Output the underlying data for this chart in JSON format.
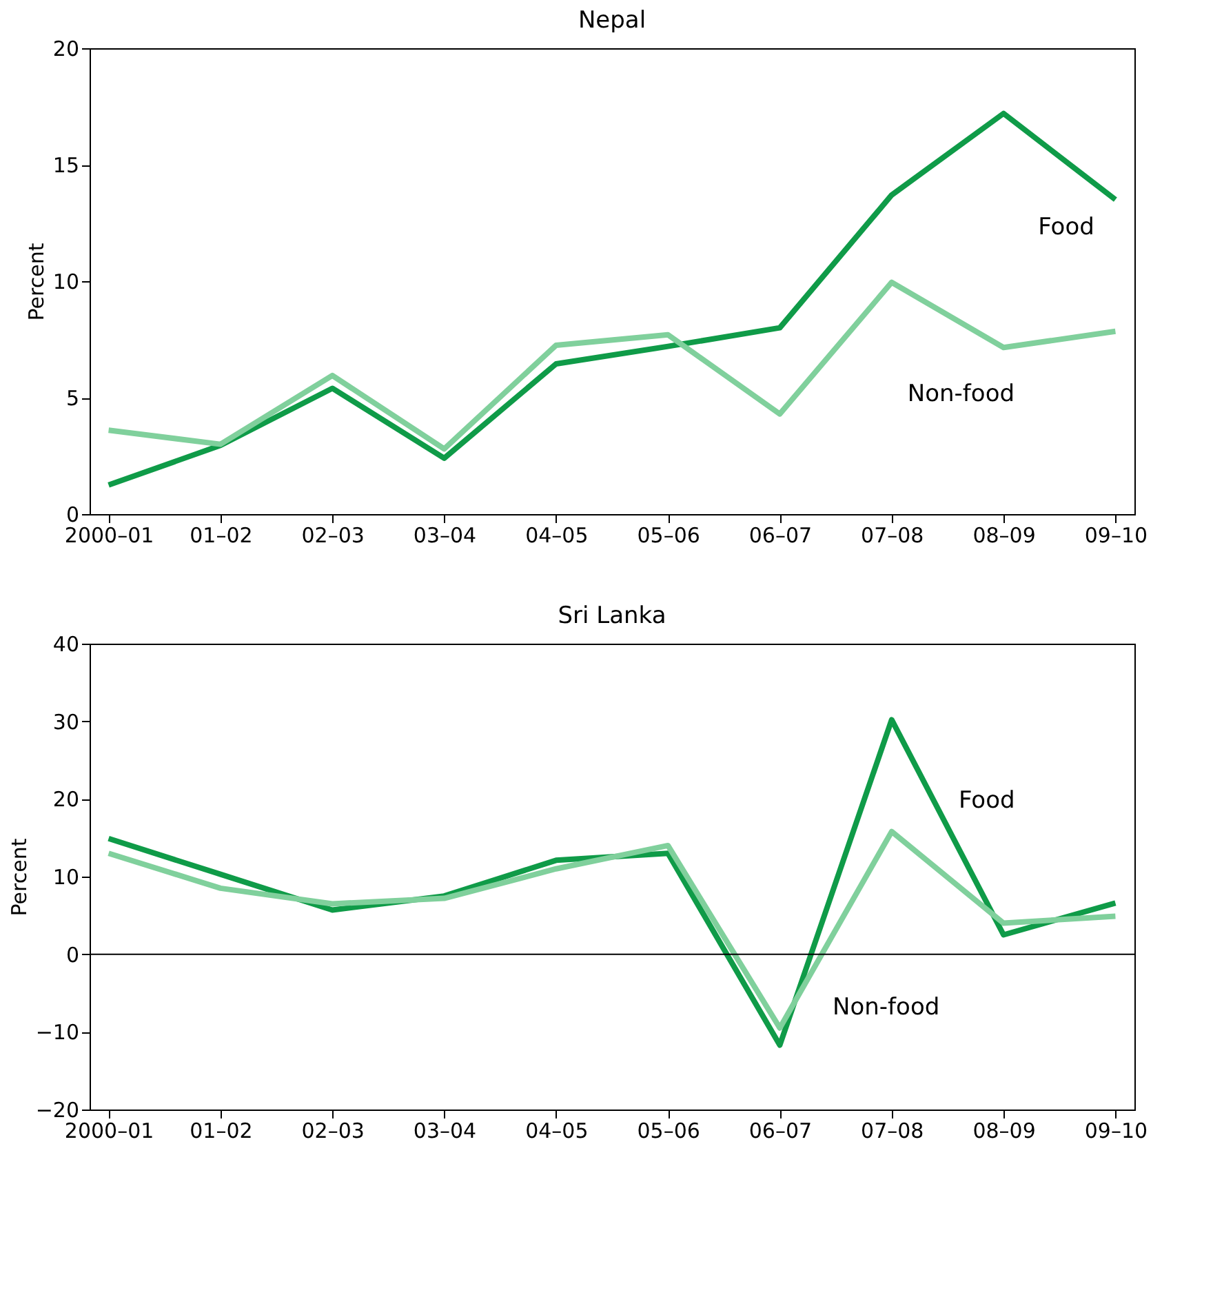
{
  "chart_data": [
    {
      "type": "line",
      "title": "Nepal",
      "ylabel": "Percent",
      "categories": [
        "2000–01",
        "01–02",
        "02–03",
        "03–04",
        "04–05",
        "05–06",
        "06–07",
        "07–08",
        "08–09",
        "09–10"
      ],
      "ylim": [
        0,
        20
      ],
      "yticks": [
        0,
        5,
        10,
        15,
        20
      ],
      "grid": false,
      "marker": "none",
      "line_style": "solid",
      "series": [
        {
          "name": "Food",
          "color": "#0f9b48",
          "values": [
            1.25,
            2.95,
            5.4,
            2.4,
            6.45,
            7.2,
            8.0,
            13.7,
            17.2,
            13.5
          ]
        },
        {
          "name": "Non-food",
          "color": "#80d09c",
          "values": [
            3.6,
            3.0,
            5.95,
            2.8,
            7.25,
            7.7,
            4.3,
            9.95,
            7.15,
            7.85
          ]
        }
      ]
    },
    {
      "type": "line",
      "title": "Sri Lanka",
      "ylabel": "Percent",
      "categories": [
        "2000–01",
        "01–02",
        "02–03",
        "03–04",
        "04–05",
        "05–06",
        "06–07",
        "07–08",
        "08–09",
        "09–10"
      ],
      "ylim": [
        -20,
        40
      ],
      "yticks": [
        -20,
        -10,
        0,
        10,
        20,
        30,
        40
      ],
      "grid": false,
      "marker": "none",
      "line_style": "solid",
      "ref_lines": [
        {
          "axis": "y",
          "value": 0,
          "color": "#000000"
        }
      ],
      "series": [
        {
          "name": "Food",
          "color": "#0f9b48",
          "values": [
            14.9,
            10.3,
            5.7,
            7.5,
            12.1,
            13.0,
            -11.7,
            30.2,
            2.5,
            6.6
          ]
        },
        {
          "name": "Non-food",
          "color": "#80d09c",
          "values": [
            13.0,
            8.5,
            6.5,
            7.2,
            11.0,
            14.0,
            -9.5,
            15.8,
            4.0,
            4.9
          ]
        }
      ]
    }
  ]
}
